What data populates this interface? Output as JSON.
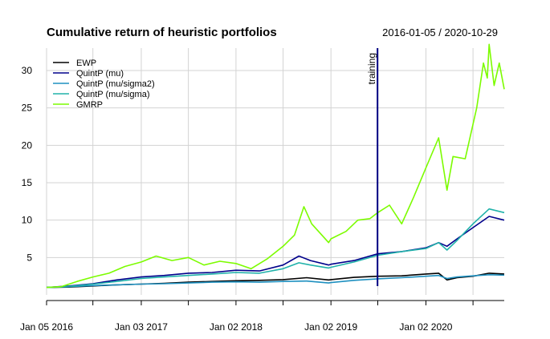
{
  "chart_data": {
    "type": "line",
    "title": "Cumulative return of heuristic portfolios",
    "subtitle": "2016-01-05 / 2020-10-29",
    "xlabel": "",
    "ylabel": "",
    "x_range": [
      "2016-01-05",
      "2020-10-29"
    ],
    "ylim": [
      0,
      33
    ],
    "y_ticks": [
      5,
      10,
      15,
      20,
      25,
      30
    ],
    "x_ticks": [
      {
        "date": "2016-01-05",
        "label": "Jan 05 2016"
      },
      {
        "date": "2017-01-03",
        "label": "Jan 03 2017"
      },
      {
        "date": "2018-01-02",
        "label": "Jan 02 2018"
      },
      {
        "date": "2019-01-02",
        "label": "Jan 02 2019"
      },
      {
        "date": "2020-01-02",
        "label": "Jan 02 2020"
      }
    ],
    "x_minor_ticks": [
      "2016-07-01",
      "2017-07-03",
      "2018-07-02",
      "2019-07-01",
      "2020-07-01"
    ],
    "grid": true,
    "legend_position": "top-left",
    "annotation": {
      "label": "training",
      "date": "2019-06-30",
      "color": "#000080"
    },
    "series": [
      {
        "name": "EWP",
        "color": "#000000",
        "points": [
          [
            "2016-01-05",
            1.0
          ],
          [
            "2016-04-01",
            1.05
          ],
          [
            "2016-07-01",
            1.2
          ],
          [
            "2016-10-01",
            1.35
          ],
          [
            "2017-01-03",
            1.45
          ],
          [
            "2017-04-01",
            1.55
          ],
          [
            "2017-07-03",
            1.7
          ],
          [
            "2017-10-02",
            1.8
          ],
          [
            "2018-01-02",
            1.9
          ],
          [
            "2018-04-02",
            1.95
          ],
          [
            "2018-07-02",
            2.05
          ],
          [
            "2018-10-01",
            2.3
          ],
          [
            "2018-12-24",
            2.0
          ],
          [
            "2019-01-02",
            2.05
          ],
          [
            "2019-04-01",
            2.35
          ],
          [
            "2019-07-01",
            2.5
          ],
          [
            "2019-10-01",
            2.55
          ],
          [
            "2020-01-02",
            2.8
          ],
          [
            "2020-02-20",
            2.9
          ],
          [
            "2020-03-23",
            2.0
          ],
          [
            "2020-05-01",
            2.3
          ],
          [
            "2020-07-01",
            2.5
          ],
          [
            "2020-09-01",
            2.9
          ],
          [
            "2020-10-29",
            2.8
          ]
        ]
      },
      {
        "name": "QuintP (mu)",
        "color": "#00008B",
        "points": [
          [
            "2016-01-05",
            1.0
          ],
          [
            "2016-04-01",
            1.2
          ],
          [
            "2016-07-01",
            1.5
          ],
          [
            "2016-10-01",
            2.0
          ],
          [
            "2017-01-03",
            2.4
          ],
          [
            "2017-04-01",
            2.6
          ],
          [
            "2017-07-03",
            2.9
          ],
          [
            "2017-10-02",
            3.0
          ],
          [
            "2018-01-02",
            3.3
          ],
          [
            "2018-04-02",
            3.2
          ],
          [
            "2018-07-02",
            4.0
          ],
          [
            "2018-09-01",
            5.2
          ],
          [
            "2018-10-15",
            4.6
          ],
          [
            "2018-12-24",
            4.0
          ],
          [
            "2019-01-02",
            4.1
          ],
          [
            "2019-04-01",
            4.6
          ],
          [
            "2019-07-01",
            5.5
          ],
          [
            "2019-10-01",
            5.8
          ],
          [
            "2020-01-02",
            6.3
          ],
          [
            "2020-02-20",
            7.0
          ],
          [
            "2020-03-23",
            6.5
          ],
          [
            "2020-05-01",
            7.5
          ],
          [
            "2020-07-01",
            9.0
          ],
          [
            "2020-09-01",
            10.5
          ],
          [
            "2020-10-29",
            10.0
          ]
        ]
      },
      {
        "name": "QuintP (mu/sigma2)",
        "color": "#1E90C0",
        "points": [
          [
            "2016-01-05",
            1.0
          ],
          [
            "2016-04-01",
            1.1
          ],
          [
            "2016-07-01",
            1.25
          ],
          [
            "2016-10-01",
            1.35
          ],
          [
            "2017-01-03",
            1.45
          ],
          [
            "2017-04-01",
            1.5
          ],
          [
            "2017-07-03",
            1.6
          ],
          [
            "2017-10-02",
            1.7
          ],
          [
            "2018-01-02",
            1.75
          ],
          [
            "2018-04-02",
            1.7
          ],
          [
            "2018-07-02",
            1.8
          ],
          [
            "2018-10-01",
            1.85
          ],
          [
            "2018-12-24",
            1.6
          ],
          [
            "2019-01-02",
            1.65
          ],
          [
            "2019-04-01",
            1.95
          ],
          [
            "2019-07-01",
            2.15
          ],
          [
            "2019-10-01",
            2.3
          ],
          [
            "2020-01-02",
            2.5
          ],
          [
            "2020-02-20",
            2.6
          ],
          [
            "2020-03-23",
            2.2
          ],
          [
            "2020-05-01",
            2.4
          ],
          [
            "2020-07-01",
            2.55
          ],
          [
            "2020-09-01",
            2.7
          ],
          [
            "2020-10-29",
            2.65
          ]
        ]
      },
      {
        "name": "QuintP (mu/sigma)",
        "color": "#20B2AA",
        "points": [
          [
            "2016-01-05",
            1.0
          ],
          [
            "2016-04-01",
            1.15
          ],
          [
            "2016-07-01",
            1.45
          ],
          [
            "2016-10-01",
            1.8
          ],
          [
            "2017-01-03",
            2.2
          ],
          [
            "2017-04-01",
            2.4
          ],
          [
            "2017-07-03",
            2.6
          ],
          [
            "2017-10-02",
            2.8
          ],
          [
            "2018-01-02",
            3.0
          ],
          [
            "2018-04-02",
            2.9
          ],
          [
            "2018-07-02",
            3.5
          ],
          [
            "2018-09-01",
            4.3
          ],
          [
            "2018-10-15",
            4.0
          ],
          [
            "2018-12-24",
            3.6
          ],
          [
            "2019-01-02",
            3.7
          ],
          [
            "2019-04-01",
            4.4
          ],
          [
            "2019-07-01",
            5.3
          ],
          [
            "2019-10-01",
            5.8
          ],
          [
            "2020-01-02",
            6.2
          ],
          [
            "2020-02-20",
            7.0
          ],
          [
            "2020-03-23",
            6.0
          ],
          [
            "2020-05-01",
            7.3
          ],
          [
            "2020-07-01",
            9.5
          ],
          [
            "2020-09-01",
            11.5
          ],
          [
            "2020-10-29",
            11.0
          ]
        ]
      },
      {
        "name": "GMRP",
        "color": "#7CFC00",
        "points": [
          [
            "2016-01-05",
            1.0
          ],
          [
            "2016-03-01",
            1.1
          ],
          [
            "2016-05-01",
            1.8
          ],
          [
            "2016-07-01",
            2.4
          ],
          [
            "2016-09-01",
            2.9
          ],
          [
            "2016-11-01",
            3.8
          ],
          [
            "2017-01-03",
            4.4
          ],
          [
            "2017-03-01",
            5.2
          ],
          [
            "2017-05-01",
            4.6
          ],
          [
            "2017-07-03",
            5.0
          ],
          [
            "2017-09-01",
            4.0
          ],
          [
            "2017-11-01",
            4.5
          ],
          [
            "2018-01-02",
            4.2
          ],
          [
            "2018-03-01",
            3.5
          ],
          [
            "2018-05-01",
            4.8
          ],
          [
            "2018-07-02",
            6.5
          ],
          [
            "2018-08-15",
            8.0
          ],
          [
            "2018-09-20",
            11.8
          ],
          [
            "2018-10-20",
            9.5
          ],
          [
            "2018-12-24",
            7.0
          ],
          [
            "2019-01-02",
            7.5
          ],
          [
            "2019-03-01",
            8.5
          ],
          [
            "2019-04-15",
            10.0
          ],
          [
            "2019-06-01",
            10.2
          ],
          [
            "2019-07-01",
            11.0
          ],
          [
            "2019-08-15",
            12.0
          ],
          [
            "2019-10-01",
            9.5
          ],
          [
            "2019-11-15",
            13.0
          ],
          [
            "2020-01-02",
            17.0
          ],
          [
            "2020-02-20",
            21.0
          ],
          [
            "2020-03-23",
            14.0
          ],
          [
            "2020-04-15",
            18.5
          ],
          [
            "2020-06-01",
            18.2
          ],
          [
            "2020-07-15",
            25.0
          ],
          [
            "2020-08-10",
            31.0
          ],
          [
            "2020-08-25",
            29.0
          ],
          [
            "2020-09-01",
            33.5
          ],
          [
            "2020-09-20",
            28.0
          ],
          [
            "2020-10-10",
            31.0
          ],
          [
            "2020-10-29",
            27.5
          ]
        ]
      }
    ]
  }
}
